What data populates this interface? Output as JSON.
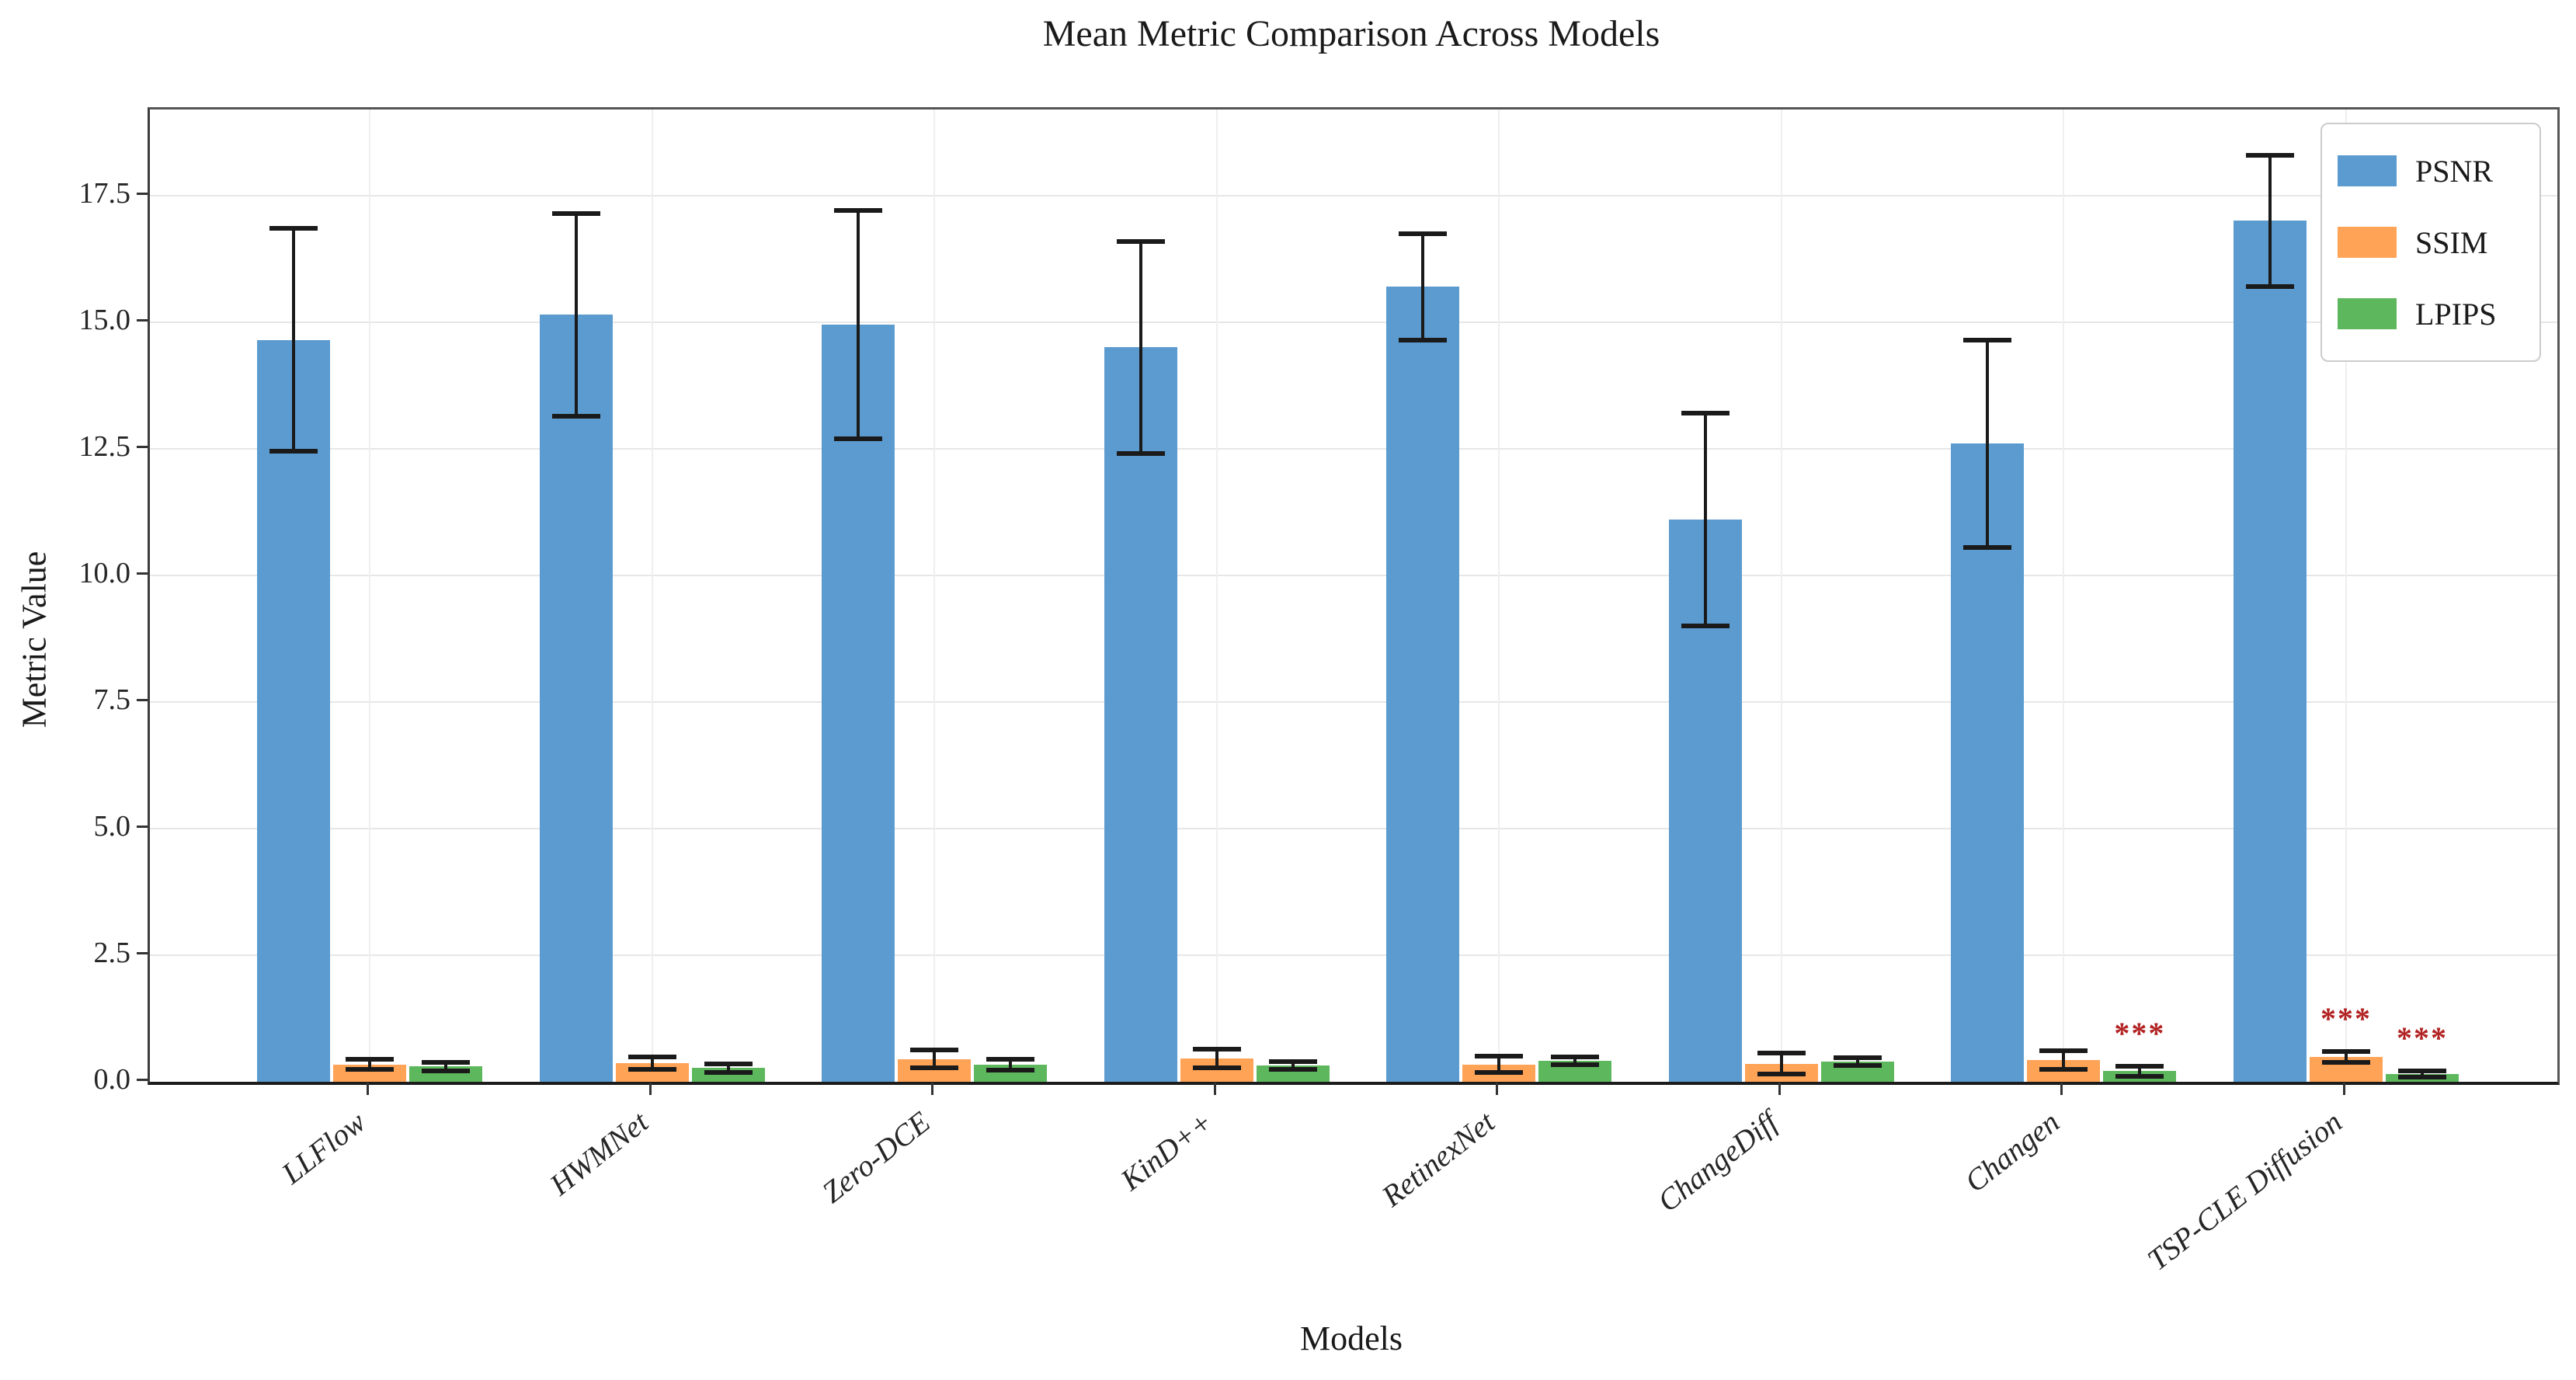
{
  "figure": {
    "title": "Mean Metric Comparison Across Models",
    "xlabel": "Models",
    "ylabel": "Metric Value"
  },
  "chart_data": {
    "type": "bar",
    "title": "Mean Metric Comparison Across Models",
    "xlabel": "Models",
    "ylabel": "Metric Value",
    "categories": [
      "LLFlow",
      "HWMNet",
      "Zero-DCE",
      "KinD++",
      "RetinexNet",
      "ChangeDiff",
      "Changen",
      "TSP-CLE Diffusion"
    ],
    "series": [
      {
        "name": "PSNR",
        "color": "#5B9BD0",
        "values": [
          14.65,
          15.15,
          14.95,
          14.5,
          15.7,
          11.1,
          12.6,
          17.0
        ],
        "errors": [
          2.2,
          2.0,
          2.25,
          2.1,
          1.05,
          2.1,
          2.05,
          1.3
        ]
      },
      {
        "name": "SSIM",
        "color": "#FFA357",
        "values": [
          0.34,
          0.37,
          0.45,
          0.46,
          0.34,
          0.36,
          0.43,
          0.49
        ],
        "errors": [
          0.1,
          0.12,
          0.18,
          0.18,
          0.16,
          0.2,
          0.18,
          0.11
        ]
      },
      {
        "name": "LPIPS",
        "color": "#5DB75D",
        "values": [
          0.3,
          0.27,
          0.34,
          0.32,
          0.41,
          0.4,
          0.21,
          0.15
        ],
        "errors": [
          0.09,
          0.08,
          0.11,
          0.08,
          0.08,
          0.08,
          0.1,
          0.06
        ]
      }
    ],
    "annotations": [
      {
        "category": "Changen",
        "series": "LPIPS",
        "text": "***"
      },
      {
        "category": "TSP-CLE Diffusion",
        "series": "SSIM",
        "text": "***"
      },
      {
        "category": "TSP-CLE Diffusion",
        "series": "LPIPS",
        "text": "***"
      }
    ],
    "annotation_color": "#B22222",
    "error_bar_color": "#1a1a1a",
    "yticks": [
      "0.0",
      "2.5",
      "5.0",
      "7.5",
      "10.0",
      "12.5",
      "15.0",
      "17.5"
    ],
    "ylim": [
      0,
      19.2
    ],
    "grid": true,
    "legend_position": "top-right"
  }
}
